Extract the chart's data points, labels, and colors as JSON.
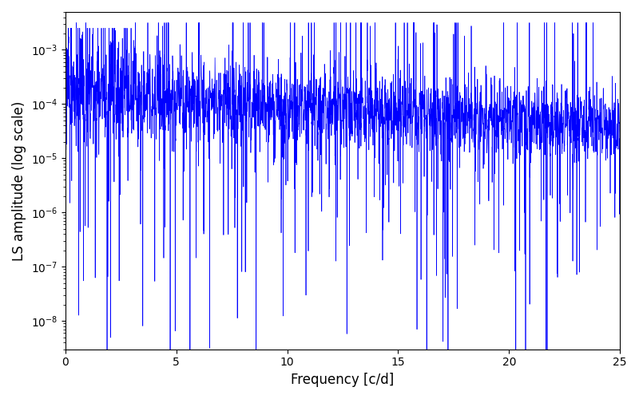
{
  "xlabel": "Frequency [c/d]",
  "ylabel": "LS amplitude (log scale)",
  "xlim": [
    0,
    25
  ],
  "ylim": [
    3e-09,
    0.005
  ],
  "xticks": [
    0,
    5,
    10,
    15,
    20,
    25
  ],
  "line_color": "#0000FF",
  "line_width": 0.5,
  "background_color": "#ffffff",
  "n_points": 8000,
  "seed": 12345,
  "figsize": [
    8.0,
    5.0
  ],
  "dpi": 100
}
